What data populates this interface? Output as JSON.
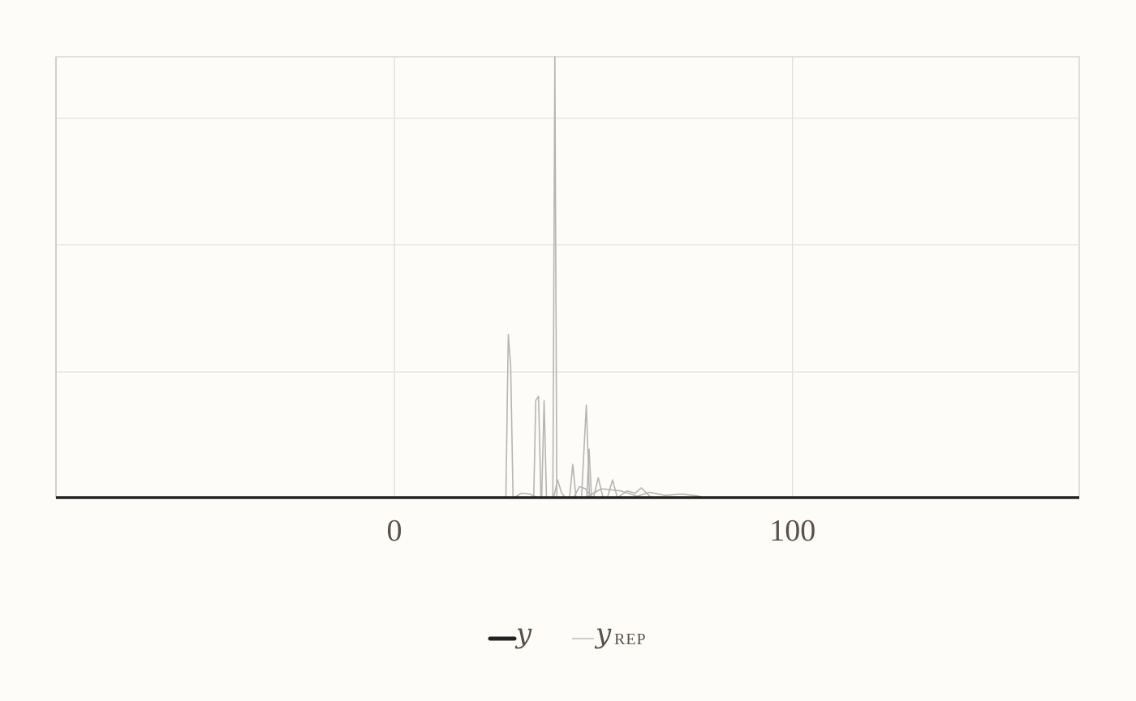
{
  "chart_data": {
    "type": "line",
    "title": "",
    "xlabel": "",
    "ylabel": "",
    "xlim": [
      -85,
      172
    ],
    "ylim": [
      0,
      1
    ],
    "x_ticks": [
      0,
      100
    ],
    "x_tick_labels": [
      "0",
      "100"
    ],
    "grid": true,
    "legend_position": "bottom-center",
    "legend": [
      {
        "symbol": "y",
        "subscript": "",
        "color": "#222222",
        "style": "thick"
      },
      {
        "symbol": "y",
        "subscript": "REP",
        "color": "#bdbdbd",
        "style": "thin"
      }
    ],
    "series": [
      {
        "name": "y",
        "color": "#222222",
        "points": [
          [
            -85,
            0
          ],
          [
            172,
            0
          ]
        ]
      },
      {
        "name": "y_rep",
        "color": "#b5b5b5",
        "points": [
          [
            28,
            0
          ],
          [
            28.6,
            0.37
          ],
          [
            29.2,
            0.3
          ],
          [
            29.8,
            0
          ]
        ]
      },
      {
        "name": "y_rep",
        "color": "#b5b5b5",
        "points": [
          [
            35,
            0
          ],
          [
            35.5,
            0.22
          ],
          [
            36.2,
            0.23
          ],
          [
            36.8,
            0
          ]
        ]
      },
      {
        "name": "y_rep",
        "color": "#b5b5b5",
        "points": [
          [
            37,
            0
          ],
          [
            37.6,
            0.22
          ],
          [
            38.2,
            0
          ]
        ]
      },
      {
        "name": "y_rep",
        "color": "#b5b5b5",
        "points": [
          [
            39.8,
            0
          ],
          [
            40.3,
            1.0
          ],
          [
            40.8,
            0
          ]
        ]
      },
      {
        "name": "y_rep",
        "color": "#b5b5b5",
        "points": [
          [
            40,
            0
          ],
          [
            41,
            0.04
          ],
          [
            42,
            0.01
          ],
          [
            43,
            0
          ]
        ]
      },
      {
        "name": "y_rep",
        "color": "#b5b5b5",
        "points": [
          [
            44,
            0
          ],
          [
            44.8,
            0.075
          ],
          [
            45.6,
            0
          ]
        ]
      },
      {
        "name": "y_rep",
        "color": "#b5b5b5",
        "points": [
          [
            47,
            0
          ],
          [
            48.2,
            0.21
          ],
          [
            49,
            0
          ]
        ]
      },
      {
        "name": "y_rep",
        "color": "#b5b5b5",
        "points": [
          [
            48.3,
            0
          ],
          [
            48.9,
            0.11
          ],
          [
            49.5,
            0
          ]
        ]
      },
      {
        "name": "y_rep",
        "color": "#b5b5b5",
        "points": [
          [
            45,
            0
          ],
          [
            46.5,
            0.025
          ],
          [
            48,
            0.02
          ],
          [
            49.5,
            0
          ]
        ]
      },
      {
        "name": "y_rep",
        "color": "#b5b5b5",
        "points": [
          [
            50,
            0
          ],
          [
            51.2,
            0.045
          ],
          [
            52.4,
            0
          ]
        ]
      },
      {
        "name": "y_rep",
        "color": "#b5b5b5",
        "points": [
          [
            53.5,
            0
          ],
          [
            54.8,
            0.04
          ],
          [
            56,
            0
          ]
        ]
      },
      {
        "name": "y_rep",
        "color": "#b5b5b5",
        "points": [
          [
            48,
            0
          ],
          [
            52,
            0.02
          ],
          [
            57,
            0.015
          ],
          [
            62,
            0
          ]
        ]
      },
      {
        "name": "y_rep",
        "color": "#b5b5b5",
        "points": [
          [
            56,
            0
          ],
          [
            58.5,
            0.015
          ],
          [
            60.5,
            0.01
          ],
          [
            62,
            0.022
          ],
          [
            64.5,
            0
          ]
        ]
      },
      {
        "name": "y_rep",
        "color": "#b5b5b5",
        "points": [
          [
            30,
            0
          ],
          [
            32,
            0.01
          ],
          [
            34,
            0.008
          ],
          [
            36,
            0
          ]
        ]
      },
      {
        "name": "y_rep",
        "color": "#b5b5b5",
        "points": [
          [
            60,
            0
          ],
          [
            64,
            0.012
          ],
          [
            68,
            0.005
          ],
          [
            72,
            0.008
          ],
          [
            76,
            0.004
          ],
          [
            78,
            0
          ]
        ]
      }
    ]
  }
}
